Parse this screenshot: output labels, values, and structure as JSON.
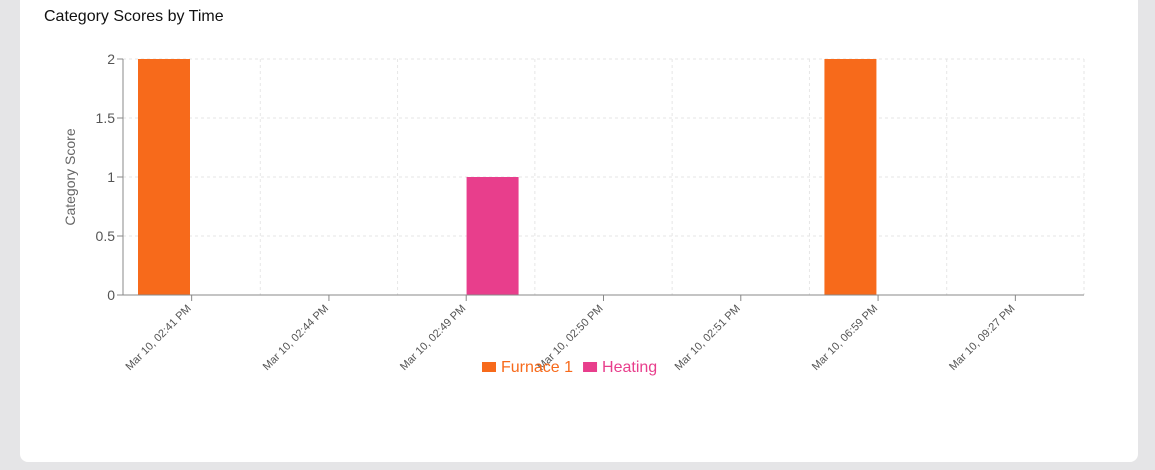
{
  "chart_data": {
    "type": "bar",
    "title": "Category Scores by Time",
    "ylabel": "Category Score",
    "xlabel": "",
    "ylim": [
      0,
      2
    ],
    "yticks": [
      "0",
      "0.5",
      "1",
      "1.5",
      "2"
    ],
    "categories": [
      "Mar 10, 02:41 PM",
      "Mar 10, 02:44 PM",
      "Mar 10, 02:49 PM",
      "Mar 10, 02:50 PM",
      "Mar 10, 02:51 PM",
      "Mar 10, 06:59 PM",
      "Mar 10, 09:27 PM"
    ],
    "series": [
      {
        "name": "Furnace 1",
        "color": "#f76a1b",
        "values": [
          2,
          0,
          0,
          0,
          0,
          2,
          0
        ]
      },
      {
        "name": "Heating",
        "color": "#e83e8c",
        "values": [
          0,
          0,
          1,
          0,
          0,
          0,
          0
        ]
      }
    ],
    "grid": true,
    "legend": "bottom-center"
  }
}
